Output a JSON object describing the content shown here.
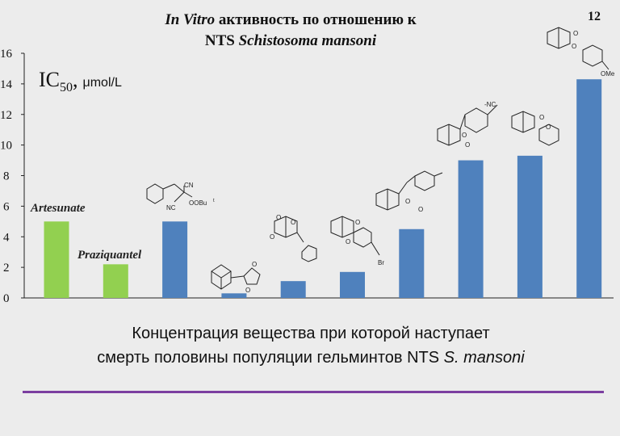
{
  "slide": {
    "title_line1_italic": "In Vitro",
    "title_line1_rest": " активность по отношению к",
    "title_line2_prefix": "NTS ",
    "title_line2_italic": "Schistosoma mansoni",
    "page_number": "12",
    "ylabel_main": "IC",
    "ylabel_sub": "50",
    "ylabel_unit": "μmol/L",
    "caption_line1": "Концентрация вещества при которой наступает",
    "caption_line2_prefix": "смерть половины популяции гельминтов NTS ",
    "caption_line2_italic": "S. mansoni"
  },
  "colors": {
    "reference": "#92d050",
    "compound": "#4f81bd",
    "rule": "#7b3fa0"
  },
  "chart_data": {
    "type": "bar",
    "title": "In Vitro активность по отношению к NTS Schistosoma mansoni",
    "ylabel": "IC50, μmol/L",
    "ylim": [
      0,
      16
    ],
    "yticks": [
      0,
      2,
      4,
      6,
      8,
      10,
      12,
      14,
      16
    ],
    "categories": [
      "Artesunate",
      "Praziquantel",
      "",
      "",
      "",
      "",
      "",
      "",
      "",
      ""
    ],
    "values": [
      5.0,
      2.2,
      5.0,
      0.3,
      1.1,
      1.7,
      4.5,
      9.0,
      9.3,
      14.3
    ],
    "bar_colors": [
      "reference",
      "reference",
      "compound",
      "compound",
      "compound",
      "compound",
      "compound",
      "compound",
      "compound",
      "compound"
    ],
    "grid": false,
    "legend": "none"
  },
  "structure_labels": {
    "cn": "CN",
    "nc": "NC",
    "oobu": "OOBu",
    "t_superscript": "t",
    "br": "Br",
    "nc_right": "-NC",
    "ome": "OMe",
    "o": "O"
  }
}
